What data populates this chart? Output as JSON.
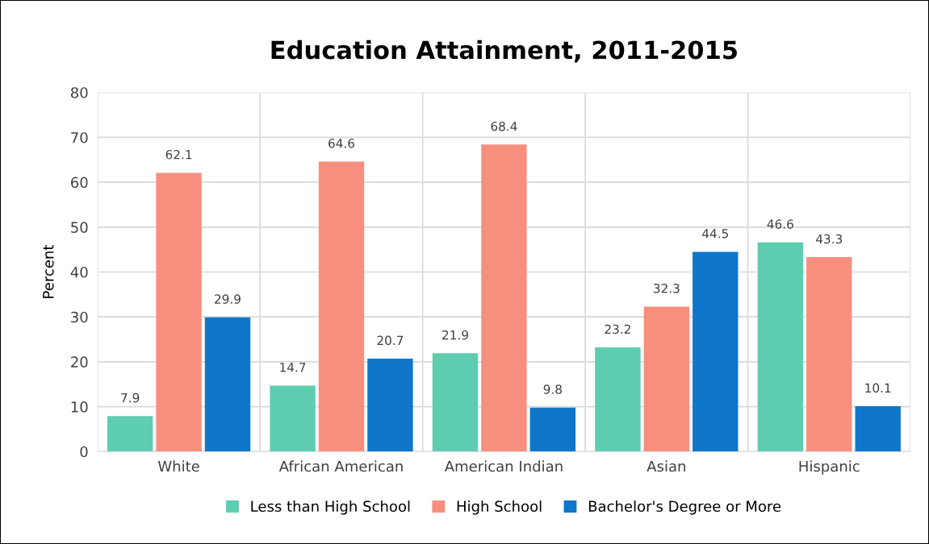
{
  "chart_data": {
    "type": "bar",
    "title": "Education Attainment, 2011-2015",
    "ylabel": "Percent",
    "categories": [
      "White",
      "African American",
      "American Indian",
      "Asian",
      "Hispanic"
    ],
    "series": [
      {
        "name": "Less than High School",
        "color": "#5ecdb0",
        "values": [
          7.9,
          14.7,
          21.9,
          23.2,
          46.6
        ]
      },
      {
        "name": "High School",
        "color": "#f78f7e",
        "values": [
          62.1,
          64.6,
          68.4,
          32.3,
          43.3
        ]
      },
      {
        "name": "Bachelor's Degree or More",
        "color": "#0e77ca",
        "values": [
          29.9,
          20.7,
          9.8,
          44.5,
          10.1
        ]
      }
    ],
    "ylim": [
      0,
      80
    ],
    "yticks": [
      0,
      10,
      20,
      30,
      40,
      50,
      60,
      70,
      80
    ],
    "grid": true,
    "legend": "bottom",
    "data_labels": true
  }
}
